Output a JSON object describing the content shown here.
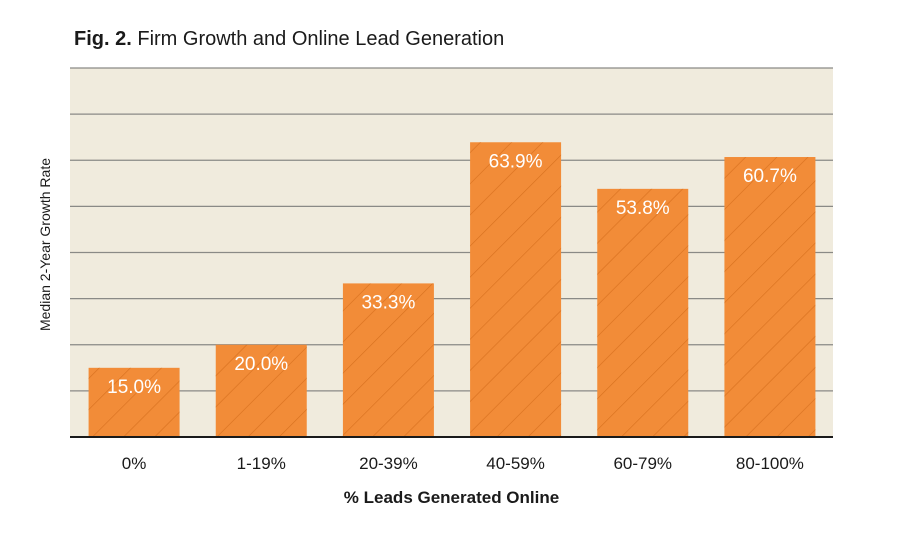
{
  "figure": {
    "label": "Fig. 2.",
    "title": "Firm Growth and Online Lead Generation"
  },
  "colors": {
    "plot_background": "#f0ebdd",
    "gridline": "#8a8a86",
    "bar_fill": "#f28c38",
    "bar_hatch": "#d8711f",
    "baseline": "#1a1a1a",
    "label_text": "#ffffff"
  },
  "chart_data": {
    "type": "bar",
    "title": "Fig. 2. Firm Growth and Online Lead Generation",
    "xlabel": "% Leads Generated Online",
    "ylabel": "Median 2-Year Growth Rate",
    "categories": [
      "0%",
      "1-19%",
      "20-39%",
      "40-59%",
      "60-79%",
      "80-100%"
    ],
    "values": [
      15.0,
      20.0,
      33.3,
      63.9,
      53.8,
      60.7
    ],
    "value_labels": [
      "15.0%",
      "20.0%",
      "33.3%",
      "63.9%",
      "53.8%",
      "60.7%"
    ],
    "ylim": [
      0,
      80
    ],
    "ytick_step": 10,
    "yticks_labeled": false,
    "grid": true,
    "hatched_bars": true
  }
}
